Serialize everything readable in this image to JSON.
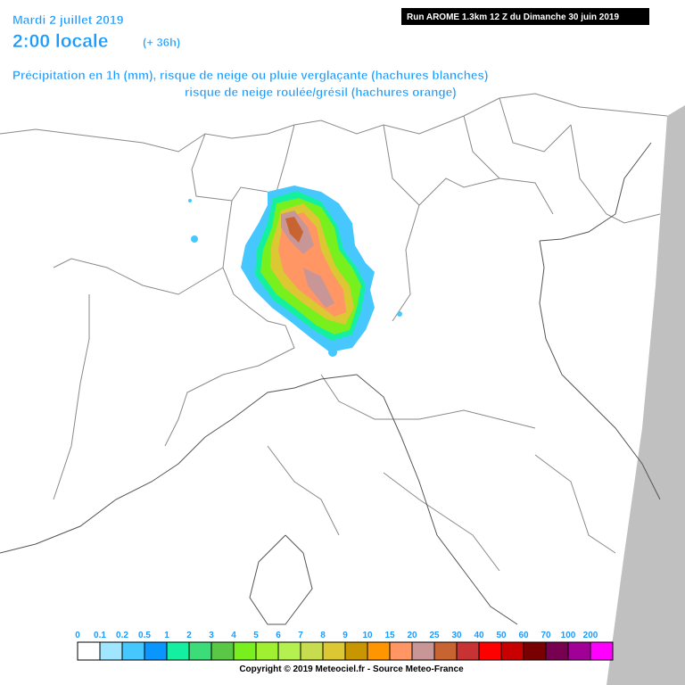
{
  "header": {
    "date": "Mardi 2 juillet 2019",
    "time": "2:00 locale",
    "lead": "(+ 36h)",
    "run": "Run AROME 1.3km 12 Z du Dimanche 30 juin 2019",
    "subtitle_line1": "Précipitation en 1h (mm), risque de neige ou pluie verglaçante (hachures blanches)",
    "subtitle_line2": "risque de neige roulée/grésil (hachures orange)"
  },
  "legend": {
    "items": [
      {
        "label": "0",
        "color": "#ffffff"
      },
      {
        "label": "0.1",
        "color": "#a0e6ff"
      },
      {
        "label": "0.2",
        "color": "#46c8ff"
      },
      {
        "label": "0.5",
        "color": "#0a96ff"
      },
      {
        "label": "1",
        "color": "#14f0a0"
      },
      {
        "label": "2",
        "color": "#3cdc78"
      },
      {
        "label": "3",
        "color": "#5ac846"
      },
      {
        "label": "4",
        "color": "#78f01e"
      },
      {
        "label": "5",
        "color": "#a0f032"
      },
      {
        "label": "6",
        "color": "#b4f050"
      },
      {
        "label": "7",
        "color": "#c8dc50"
      },
      {
        "label": "8",
        "color": "#dcc832"
      },
      {
        "label": "9",
        "color": "#c89600"
      },
      {
        "label": "10",
        "color": "#ff9600"
      },
      {
        "label": "15",
        "color": "#ff9664"
      },
      {
        "label": "20",
        "color": "#c89696"
      },
      {
        "label": "25",
        "color": "#c86432"
      },
      {
        "label": "30",
        "color": "#c83232"
      },
      {
        "label": "40",
        "color": "#ff0000"
      },
      {
        "label": "50",
        "color": "#c80000"
      },
      {
        "label": "60",
        "color": "#780000"
      },
      {
        "label": "70",
        "color": "#780050"
      },
      {
        "label": "100",
        "color": "#a00096"
      },
      {
        "label": "200",
        "color": "#ff00ff"
      }
    ]
  },
  "footer": {
    "copyright": "Copyright © 2019 Meteociel.fr - Source Meteo-France"
  }
}
